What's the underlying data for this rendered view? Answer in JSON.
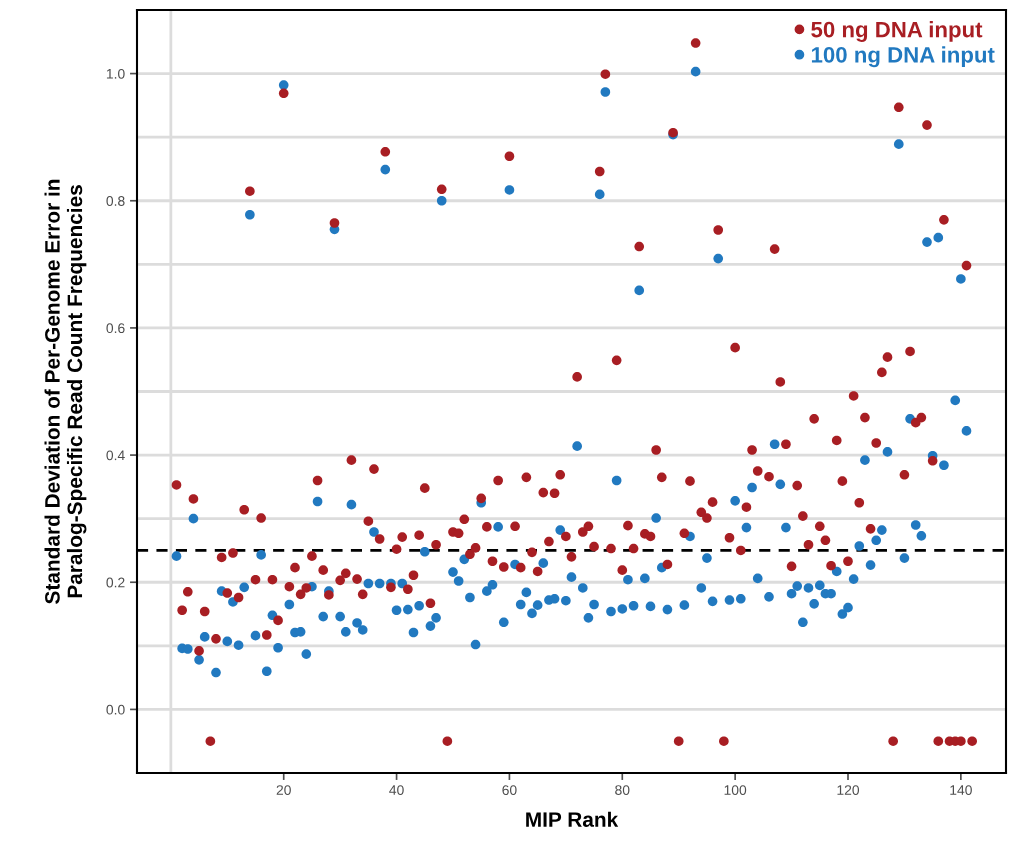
{
  "chart_data": {
    "type": "scatter",
    "xlabel": "MIP Rank",
    "ylabel": "Standard Deviation of Per-Genome Error in\nParalog-Specific Read Count Frequencies",
    "x": [
      1,
      2,
      3,
      4,
      5,
      6,
      7,
      8,
      9,
      10,
      11,
      12,
      13,
      14,
      15,
      16,
      17,
      18,
      19,
      20,
      21,
      22,
      23,
      24,
      25,
      26,
      27,
      28,
      29,
      30,
      31,
      32,
      33,
      34,
      35,
      36,
      37,
      38,
      39,
      40,
      41,
      42,
      43,
      44,
      45,
      46,
      47,
      48,
      49,
      50,
      51,
      52,
      53,
      54,
      55,
      56,
      57,
      58,
      59,
      60,
      61,
      62,
      63,
      64,
      65,
      66,
      67,
      68,
      69,
      70,
      71,
      72,
      73,
      74,
      75,
      76,
      77,
      78,
      79,
      80,
      81,
      82,
      83,
      84,
      85,
      86,
      87,
      88,
      89,
      90,
      91,
      92,
      93,
      94,
      95,
      96,
      97,
      98,
      99,
      100,
      101,
      102,
      103,
      104,
      105,
      106,
      107,
      108,
      109,
      110,
      111,
      112,
      113,
      114,
      115,
      116,
      117,
      118,
      119,
      120,
      121,
      122,
      123,
      124,
      125,
      126,
      127,
      128,
      129,
      130,
      131,
      132,
      133,
      134,
      135,
      136,
      137,
      138,
      139,
      140,
      141,
      142
    ],
    "series": [
      {
        "name": "100 ng DNA input",
        "color": "#2179c0",
        "values": [
          0.241,
          0.096,
          0.095,
          0.3,
          0.078,
          0.114,
          null,
          0.058,
          0.186,
          0.107,
          0.169,
          0.101,
          0.192,
          0.778,
          0.116,
          0.243,
          0.06,
          0.148,
          0.097,
          0.982,
          0.165,
          0.121,
          0.122,
          0.087,
          0.193,
          0.327,
          0.146,
          0.186,
          0.755,
          0.146,
          0.122,
          0.322,
          0.136,
          0.125,
          0.198,
          0.279,
          0.198,
          0.849,
          0.198,
          0.156,
          0.198,
          0.157,
          0.121,
          0.163,
          0.248,
          0.131,
          0.144,
          0.8,
          null,
          0.216,
          0.202,
          0.236,
          0.176,
          0.102,
          0.325,
          0.186,
          0.196,
          0.287,
          0.137,
          0.817,
          0.228,
          0.165,
          0.184,
          0.151,
          0.164,
          0.23,
          0.172,
          0.174,
          0.282,
          0.171,
          0.208,
          0.414,
          0.191,
          0.144,
          0.165,
          0.81,
          0.971,
          0.154,
          0.36,
          0.158,
          0.204,
          0.163,
          0.659,
          0.206,
          0.162,
          0.301,
          0.223,
          0.157,
          0.904,
          null,
          0.164,
          0.272,
          1.003,
          0.191,
          0.238,
          0.17,
          0.709,
          null,
          0.172,
          0.328,
          0.174,
          0.286,
          0.349,
          0.206,
          null,
          0.177,
          0.417,
          0.354,
          0.286,
          0.182,
          0.194,
          0.137,
          0.191,
          0.166,
          0.195,
          0.182,
          0.182,
          0.217,
          0.15,
          0.16,
          0.205,
          0.257,
          0.392,
          0.227,
          0.266,
          0.282,
          0.405,
          null,
          0.889,
          0.238,
          0.457,
          0.29,
          0.273,
          0.735,
          0.399,
          0.742,
          0.384,
          null,
          0.486,
          0.677,
          0.438,
          null
        ]
      },
      {
        "name": "50 ng DNA input",
        "color": "#a81e23",
        "values": [
          0.353,
          0.156,
          0.185,
          0.331,
          0.092,
          0.154,
          -0.05,
          0.111,
          0.239,
          0.183,
          0.246,
          0.176,
          0.314,
          0.815,
          0.204,
          0.301,
          0.117,
          0.204,
          0.14,
          0.969,
          0.193,
          0.223,
          0.181,
          0.191,
          0.241,
          0.36,
          0.219,
          0.18,
          0.765,
          0.203,
          0.214,
          0.392,
          0.205,
          0.181,
          0.296,
          0.378,
          0.268,
          0.877,
          0.192,
          0.252,
          0.271,
          0.189,
          0.211,
          0.274,
          0.348,
          0.167,
          0.259,
          0.818,
          -0.05,
          0.279,
          0.277,
          0.299,
          0.244,
          0.254,
          0.332,
          0.287,
          0.233,
          0.36,
          0.224,
          0.87,
          0.288,
          0.223,
          0.365,
          0.247,
          0.217,
          0.341,
          0.264,
          0.34,
          0.369,
          0.272,
          0.24,
          0.523,
          0.279,
          0.288,
          0.256,
          0.846,
          0.999,
          0.253,
          0.549,
          0.219,
          0.289,
          0.253,
          0.728,
          0.276,
          0.272,
          0.408,
          0.365,
          0.228,
          0.907,
          -0.05,
          0.277,
          0.359,
          1.048,
          0.31,
          0.301,
          0.326,
          0.754,
          -0.05,
          0.27,
          0.569,
          0.25,
          0.318,
          0.408,
          0.375,
          null,
          0.366,
          0.724,
          0.515,
          0.417,
          0.225,
          0.352,
          0.304,
          0.259,
          0.457,
          0.288,
          0.266,
          0.226,
          0.423,
          0.359,
          0.233,
          0.493,
          0.325,
          0.459,
          0.284,
          0.419,
          0.53,
          0.554,
          -0.05,
          0.947,
          0.369,
          0.563,
          0.451,
          0.459,
          0.919,
          0.391,
          -0.05,
          0.77,
          -0.05,
          -0.05,
          -0.05,
          0.698,
          -0.05
        ]
      }
    ],
    "xlim": [
      -6,
      148
    ],
    "xticks": [
      20,
      40,
      60,
      80,
      100,
      120,
      140
    ],
    "ylim": [
      -0.1,
      1.1
    ],
    "yticks": [
      {
        "value": 0.0,
        "label": "0.0"
      },
      {
        "value": 0.1,
        "label": null
      },
      {
        "value": 0.2,
        "label": "0.2"
      },
      {
        "value": 0.3,
        "label": null
      },
      {
        "value": 0.4,
        "label": "0.4"
      },
      {
        "value": 0.5,
        "label": null
      },
      {
        "value": 0.6,
        "label": "0.6"
      },
      {
        "value": 0.7,
        "label": null
      },
      {
        "value": 0.8,
        "label": "0.8"
      },
      {
        "value": 0.9,
        "label": null
      },
      {
        "value": 1.0,
        "label": "1.0"
      }
    ],
    "ref_lines": [
      {
        "axis": "y",
        "value": 0.25,
        "color": "#000000",
        "line_style": "dashed"
      },
      {
        "axis": "x",
        "value": 0,
        "color": "#dcdcdc",
        "line_style": "solid"
      }
    ],
    "grid": "y",
    "legend": "top right",
    "marker": "circle"
  }
}
